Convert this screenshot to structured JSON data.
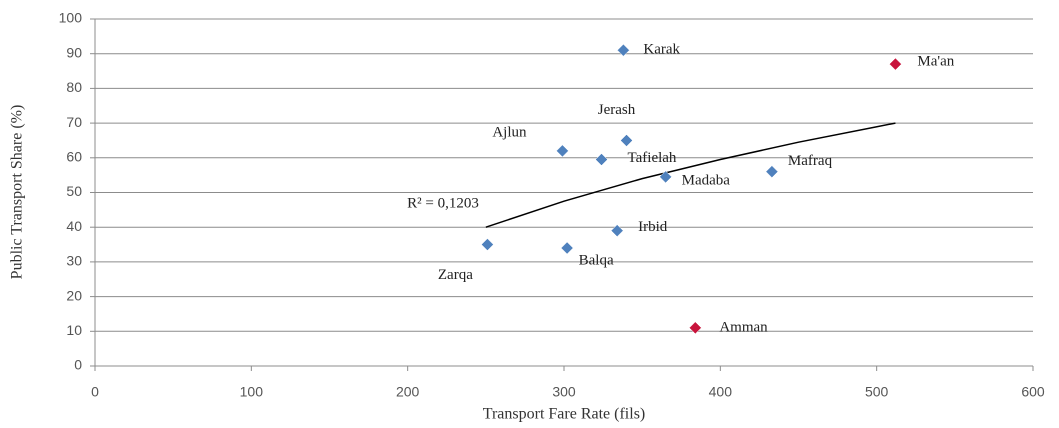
{
  "chart_data": {
    "type": "scatter",
    "x_label": "Transport Fare Rate (fils)",
    "y_label": "Public Transport Share (%)",
    "xlim": [
      0,
      600
    ],
    "xticks": [
      0,
      100,
      200,
      300,
      400,
      500,
      600
    ],
    "ylim": [
      0,
      100
    ],
    "yticks": [
      0,
      10,
      20,
      30,
      40,
      50,
      60,
      70,
      80,
      90,
      100
    ],
    "grid": true,
    "series": [
      {
        "color": "#4f81bd",
        "labels": [
          "Karak",
          "Jerash",
          "Ajlun",
          "Tafielah",
          "Madaba",
          "Mafraq",
          "Irbid",
          "Zarqa",
          "Balqa"
        ],
        "x": [
          338,
          340,
          299,
          324,
          365,
          433,
          334,
          251,
          302
        ],
        "values": [
          91,
          65,
          62,
          59.5,
          54.5,
          56,
          39,
          35,
          34
        ]
      },
      {
        "color": "#c8143c",
        "labels": [
          "Ma'an",
          "Amman"
        ],
        "x": [
          512,
          384
        ],
        "values": [
          87,
          11
        ]
      }
    ],
    "trendline": {
      "color": "#000000",
      "x": [
        250,
        300,
        350,
        400,
        450,
        512
      ],
      "values": [
        40,
        47.5,
        54,
        59.5,
        64.5,
        70
      ]
    },
    "annotation": "R² = 0,1203"
  }
}
